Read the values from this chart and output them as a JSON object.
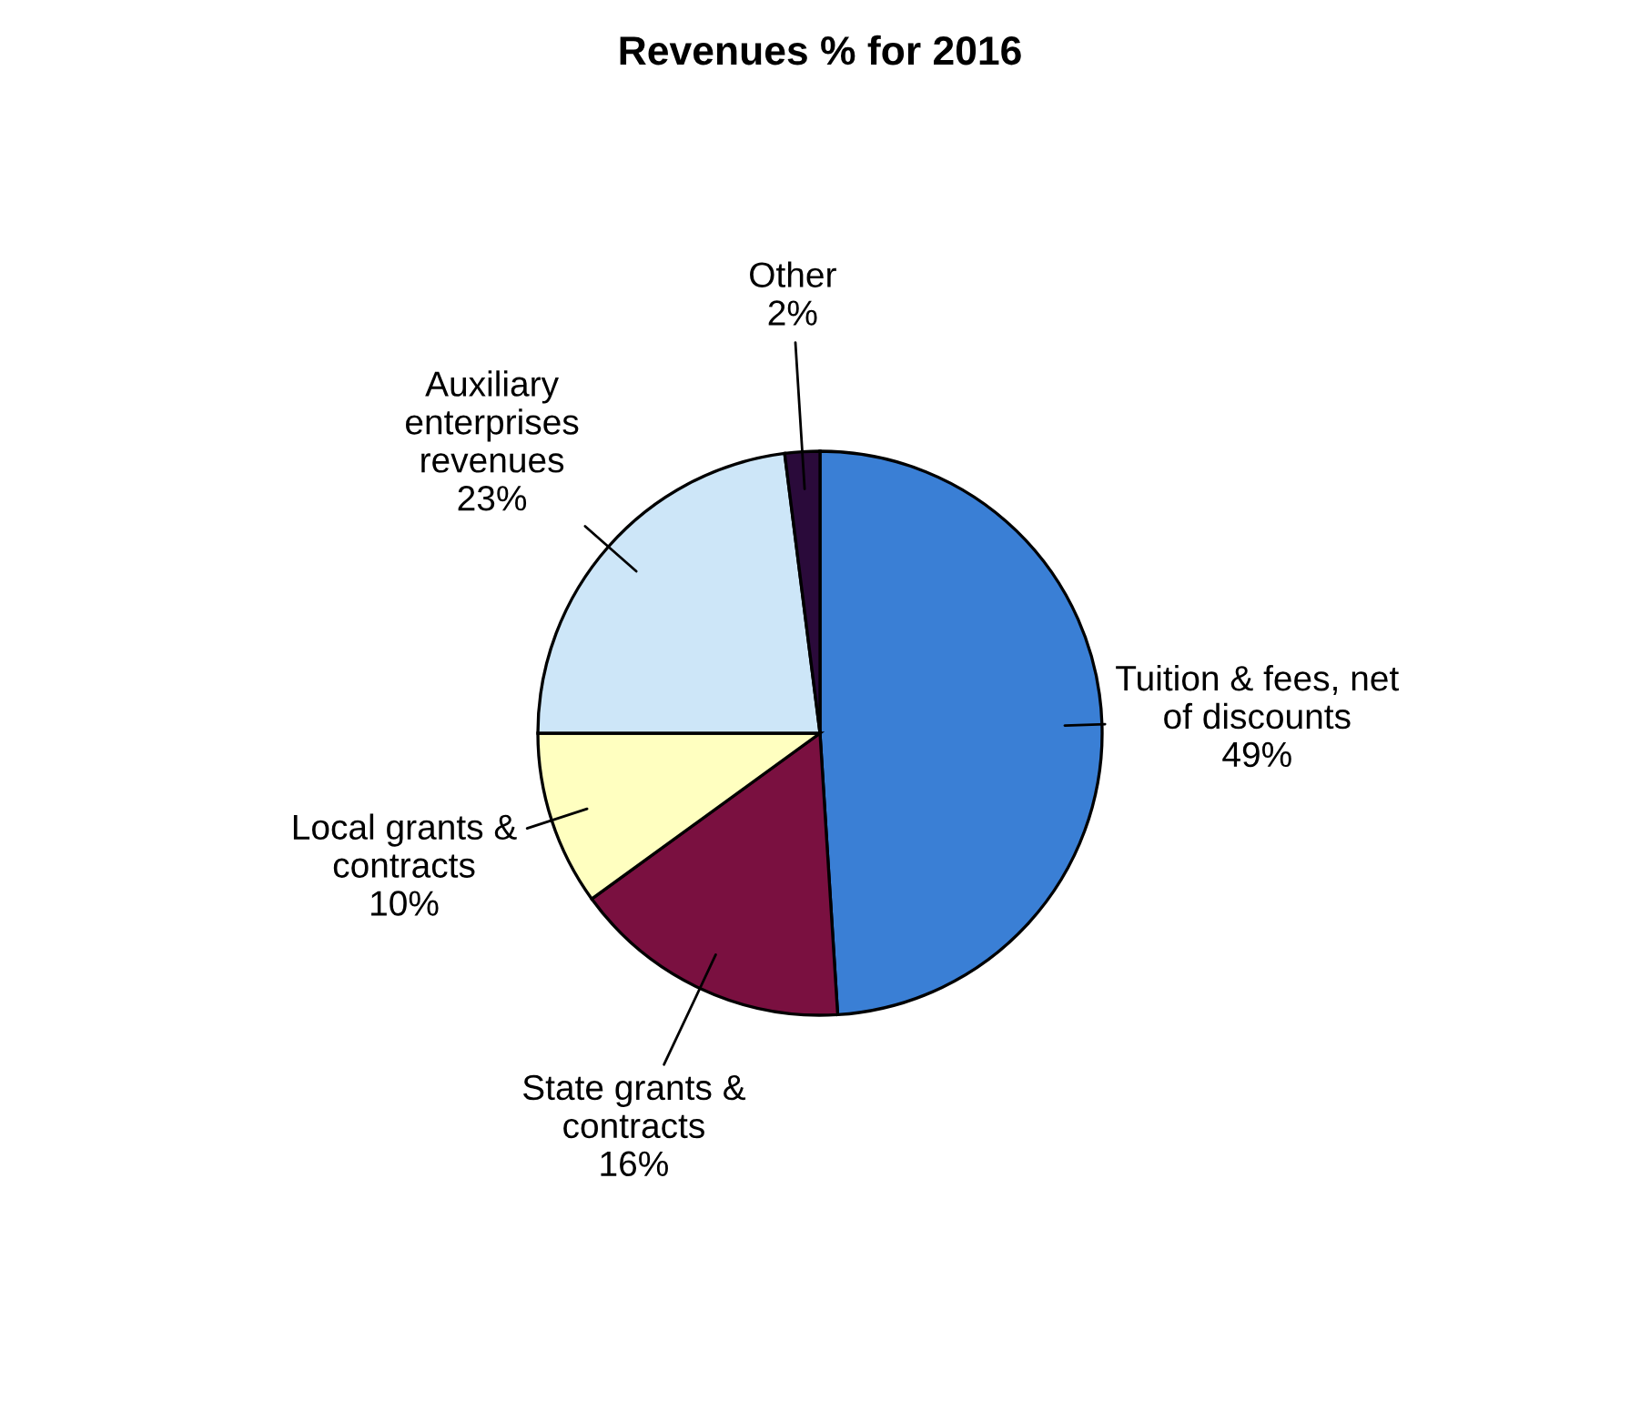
{
  "chart_data": {
    "type": "pie",
    "title": "Revenues % for 2016",
    "categories": [
      "Tuition & fees, net\nof discounts",
      "State grants &\ncontracts",
      "Local grants &\ncontracts",
      "Auxiliary\nenterprises\nrevenues",
      "Other"
    ],
    "values": [
      49,
      16,
      10,
      23,
      2
    ],
    "value_labels": [
      "49%",
      "16%",
      "10%",
      "23%",
      "2%"
    ],
    "colors": [
      "#3a7fd5",
      "#7a1040",
      "#ffffc0",
      "#cde6f8",
      "#2a0a3a"
    ],
    "legend": false
  }
}
